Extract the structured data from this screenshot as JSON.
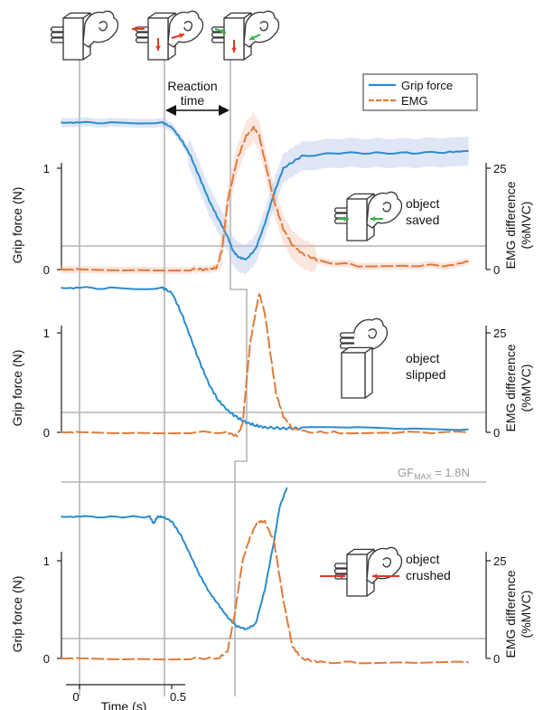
{
  "chart_data": [
    {
      "type": "line",
      "panel": "saved",
      "xlabel": "",
      "ylabel_left": "Grip force (N)",
      "ylabel_right": "EMG difference (%MVC)",
      "y_left_ticks": [
        "0",
        "1"
      ],
      "y_right_ticks": [
        "0",
        "25"
      ],
      "ylim_left": [
        0,
        1.5
      ],
      "ylim_right": [
        0,
        35
      ],
      "annotation": [
        "object",
        "saved"
      ],
      "legend": [
        "Grip force",
        "EMG"
      ],
      "legend_position": "top-right",
      "shaded_confidence": true,
      "series": [
        {
          "name": "Grip force",
          "x": [
            -0.1,
            0.0,
            0.2,
            0.45,
            0.5,
            0.55,
            0.6,
            0.65,
            0.7,
            0.75,
            0.8,
            0.83,
            0.86,
            0.9,
            0.95,
            1.0,
            1.05,
            1.1,
            1.2,
            1.4,
            1.6,
            1.8,
            2.0,
            2.1
          ],
          "values": [
            1.45,
            1.45,
            1.45,
            1.45,
            1.4,
            1.28,
            1.12,
            0.9,
            0.68,
            0.5,
            0.32,
            0.18,
            0.12,
            0.1,
            0.2,
            0.45,
            0.75,
            1.0,
            1.12,
            1.15,
            1.15,
            1.15,
            1.16,
            1.17
          ]
        },
        {
          "name": "EMG",
          "x": [
            -0.1,
            0.0,
            0.3,
            0.6,
            0.7,
            0.74,
            0.77,
            0.8,
            0.85,
            0.9,
            0.94,
            0.97,
            1.0,
            1.05,
            1.1,
            1.15,
            1.2,
            1.3,
            1.5,
            1.8,
            2.0,
            2.1
          ],
          "values": [
            0,
            0,
            0,
            0,
            0,
            0.5,
            5,
            17,
            27,
            33,
            35,
            33,
            27,
            17,
            10,
            6,
            4,
            2,
            1,
            1,
            1,
            2
          ]
        }
      ]
    },
    {
      "type": "line",
      "panel": "slipped",
      "xlabel": "",
      "ylabel_left": "Grip force (N)",
      "ylabel_right": "EMG difference (%MVC)",
      "y_left_ticks": [
        "0",
        "1"
      ],
      "y_right_ticks": [
        "0",
        "25"
      ],
      "ylim_left": [
        0,
        1.5
      ],
      "ylim_right": [
        0,
        35
      ],
      "annotation": [
        "object",
        "slipped"
      ],
      "series": [
        {
          "name": "Grip force",
          "x": [
            -0.1,
            0.0,
            0.2,
            0.45,
            0.5,
            0.55,
            0.6,
            0.65,
            0.7,
            0.75,
            0.8,
            0.85,
            0.9,
            0.95,
            1.0,
            1.1,
            1.2,
            1.5,
            1.8,
            2.1
          ],
          "values": [
            1.45,
            1.45,
            1.45,
            1.45,
            1.4,
            1.2,
            0.95,
            0.7,
            0.48,
            0.32,
            0.22,
            0.15,
            0.1,
            0.07,
            0.05,
            0.04,
            0.04,
            0.04,
            0.03,
            0.03
          ]
        },
        {
          "name": "EMG",
          "x": [
            -0.1,
            0.0,
            0.3,
            0.6,
            0.8,
            0.85,
            0.88,
            0.9,
            0.92,
            0.95,
            0.97,
            1.0,
            1.03,
            1.06,
            1.1,
            1.15,
            1.25,
            1.4,
            1.7,
            2.1
          ],
          "values": [
            0,
            0,
            0,
            0,
            0,
            -1,
            2,
            12,
            22,
            30,
            35,
            30,
            20,
            10,
            4,
            1,
            0,
            0,
            0,
            0
          ]
        }
      ]
    },
    {
      "type": "line",
      "panel": "crushed",
      "xlabel": "Time (s)",
      "ylabel_left": "Grip force (N)",
      "ylabel_right": "EMG difference (%MVC)",
      "x_ticks": [
        "0",
        "0.5"
      ],
      "y_left_ticks": [
        "0",
        "1"
      ],
      "y_right_ticks": [
        "0",
        "25"
      ],
      "ylim_left": [
        0,
        1.9
      ],
      "ylim_right": [
        0,
        35
      ],
      "threshold_label": "GF",
      "threshold_subscript": "MAX",
      "threshold_value_label": " = 1.8N",
      "annotation": [
        "object",
        "crushed"
      ],
      "series": [
        {
          "name": "Grip force",
          "x": [
            -0.1,
            0.0,
            0.2,
            0.38,
            0.4,
            0.42,
            0.45,
            0.5,
            0.55,
            0.6,
            0.65,
            0.7,
            0.75,
            0.8,
            0.85,
            0.9,
            0.95,
            1.0,
            1.05,
            1.08,
            1.12
          ],
          "values": [
            1.45,
            1.45,
            1.45,
            1.45,
            1.38,
            1.45,
            1.45,
            1.4,
            1.25,
            1.05,
            0.85,
            0.68,
            0.55,
            0.42,
            0.33,
            0.3,
            0.35,
            0.7,
            1.2,
            1.55,
            1.75
          ]
        },
        {
          "name": "EMG",
          "x": [
            -0.1,
            0.0,
            0.3,
            0.6,
            0.75,
            0.8,
            0.84,
            0.88,
            0.92,
            0.96,
            1.0,
            1.05,
            1.1,
            1.15,
            1.2,
            1.3,
            1.5,
            1.8,
            2.1
          ],
          "values": [
            0,
            0,
            0,
            0,
            0,
            2,
            12,
            25,
            31,
            35,
            35,
            30,
            15,
            3,
            0,
            -1,
            -1,
            -1,
            -1
          ]
        }
      ]
    }
  ],
  "top_annotation": [
    "Reaction",
    "time"
  ],
  "colors": {
    "grip_force": "#2a8ccd",
    "emg": "#e07b39",
    "gray_marker": "#b5b5b5",
    "arrow_red": "#e03a23",
    "arrow_green": "#37b34a"
  }
}
